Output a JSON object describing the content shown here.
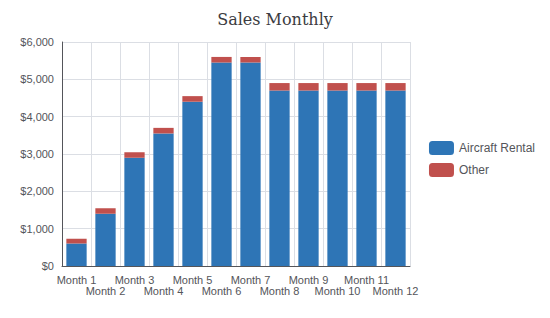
{
  "chart_data": {
    "type": "bar",
    "title": "Sales Monthly",
    "categories": [
      "Month 1",
      "Month 2",
      "Month 3",
      "Month 4",
      "Month 5",
      "Month 6",
      "Month 7",
      "Month 8",
      "Month 9",
      "Month 10",
      "Month 11",
      "Month 12"
    ],
    "series": [
      {
        "name": "Aircraft Rental",
        "color": "#2E75B6",
        "values": [
          600,
          1400,
          2900,
          3550,
          4400,
          5450,
          5450,
          4700,
          4700,
          4700,
          4700,
          4700
        ]
      },
      {
        "name": "Other",
        "color": "#C0504D",
        "values": [
          130,
          150,
          150,
          150,
          150,
          150,
          150,
          200,
          200,
          200,
          200,
          200
        ]
      }
    ],
    "stacked": true,
    "ylim": [
      0,
      6000
    ],
    "yticks": [
      {
        "value": 0,
        "label": "$0"
      },
      {
        "value": 1000,
        "label": "$1,000"
      },
      {
        "value": 2000,
        "label": "$2,000"
      },
      {
        "value": 3000,
        "label": "$3,000"
      },
      {
        "value": 4000,
        "label": "$4,000"
      },
      {
        "value": 5000,
        "label": "$5,000"
      },
      {
        "value": 6000,
        "label": "$6,000"
      }
    ],
    "grid": true,
    "legend": "right"
  }
}
